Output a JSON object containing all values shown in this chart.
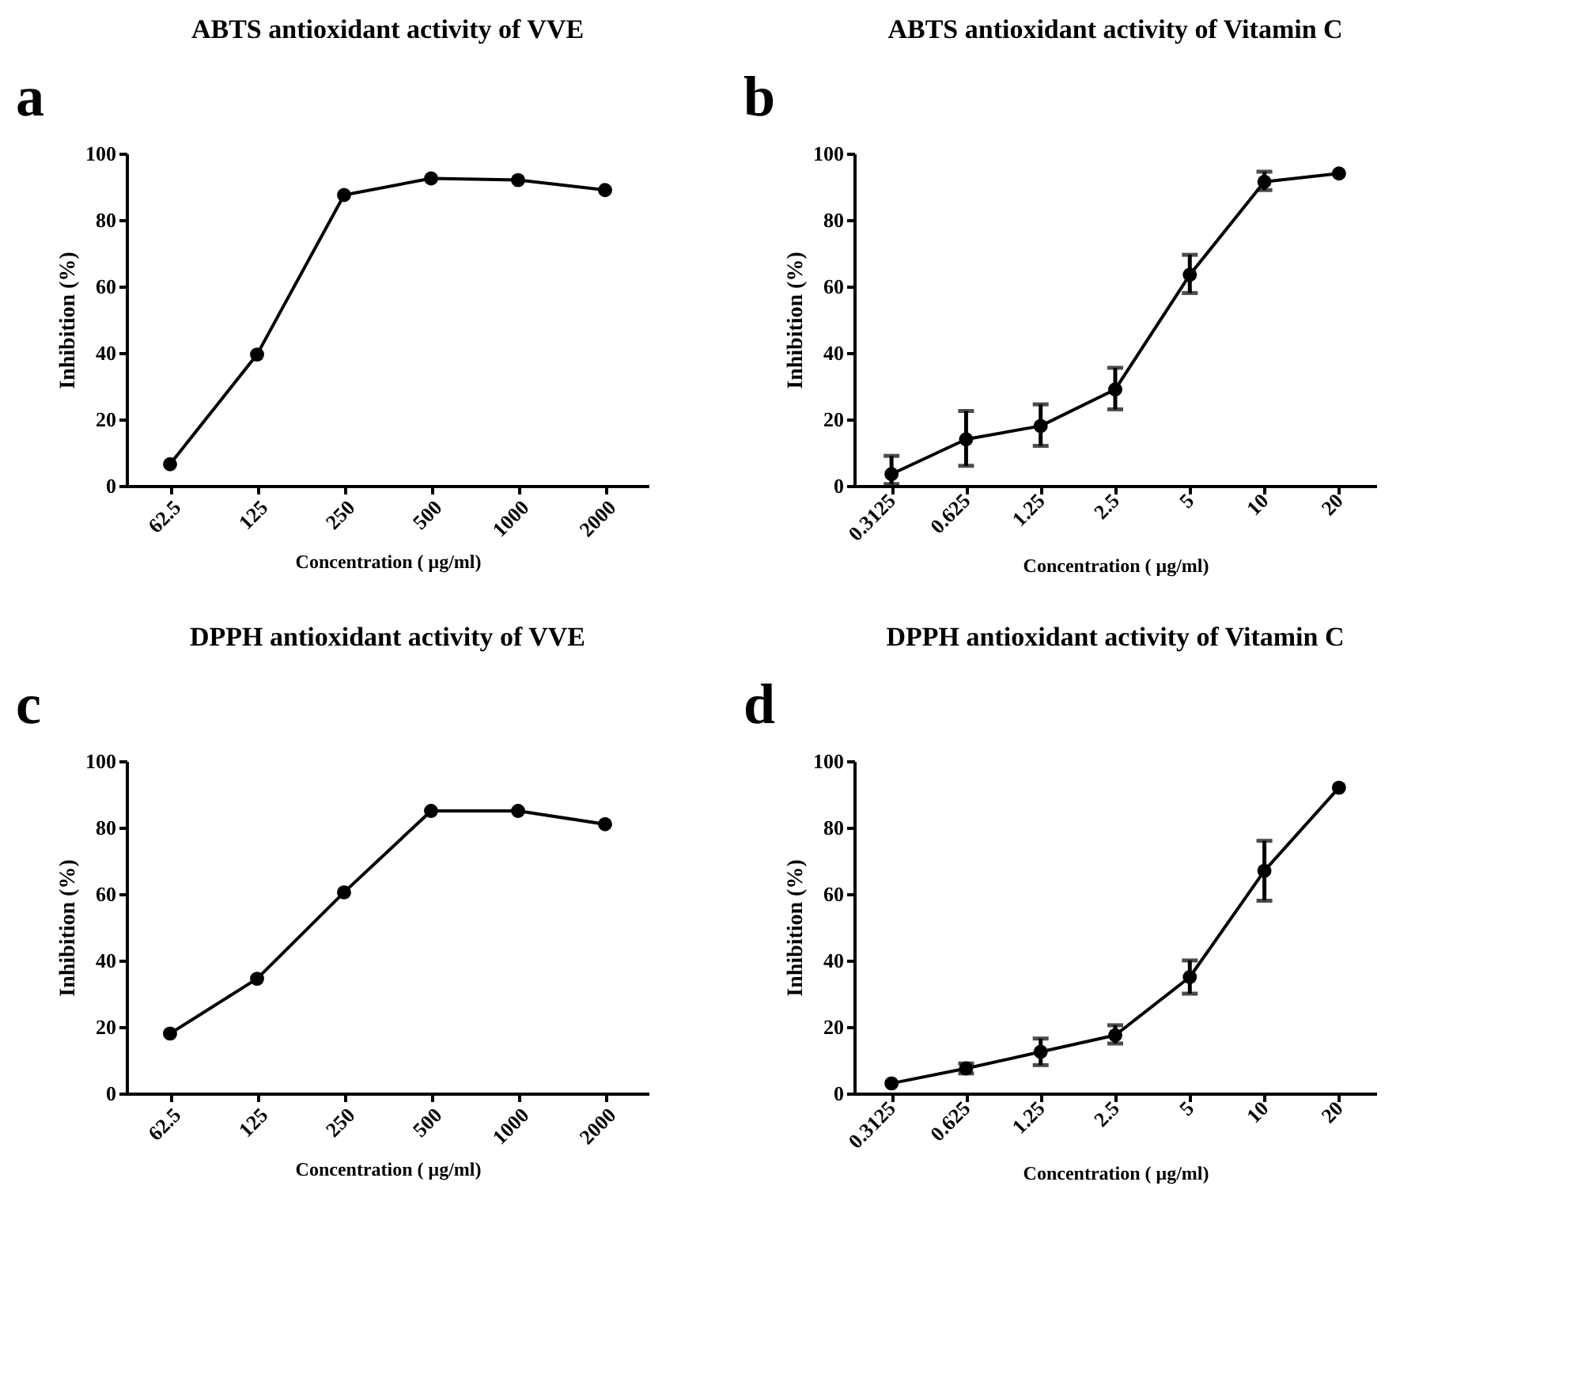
{
  "chart_data": [
    {
      "type": "line",
      "title": "ABTS antioxidant activity of VVE",
      "annotations": [
        "a"
      ],
      "xlabel": "Concentration ( μg/ml)",
      "ylabel": "Inhibition (%)",
      "categories": [
        "62.5",
        "125",
        "250",
        "500",
        "1000",
        "2000"
      ],
      "marker": "circle",
      "ylim": [
        0,
        100
      ],
      "yticks": [
        0,
        20,
        40,
        60,
        80,
        100
      ],
      "series": [
        {
          "color": "#000000",
          "values": [
            6.5,
            39.5,
            87.5,
            92.5,
            92,
            89
          ]
        }
      ]
    },
    {
      "type": "line",
      "title": "ABTS antioxidant activity of  Vitamin C",
      "annotations": [
        "b"
      ],
      "xlabel": "Concentration ( μg/ml)",
      "ylabel": "Inhibition (%)",
      "categories": [
        "0.3125",
        "0.625",
        "1.25",
        "2.5",
        "5",
        "10",
        "20"
      ],
      "marker": "circle",
      "ylim": [
        0,
        100
      ],
      "yticks": [
        0,
        20,
        40,
        60,
        80,
        100
      ],
      "series": [
        {
          "color": "#000000",
          "values": [
            3.5,
            14,
            18,
            29,
            63.5,
            91.5,
            94
          ],
          "errors": [
            [
              0.5,
              9
            ],
            [
              6,
              22.5
            ],
            [
              12,
              24.5
            ],
            [
              23,
              35.5
            ],
            [
              58,
              69.5
            ],
            [
              89,
              94.5
            ],
            null
          ]
        }
      ]
    },
    {
      "type": "line",
      "title": "DPPH antioxidant activity of VVE",
      "annotations": [
        "c"
      ],
      "xlabel": "Concentration ( μg/ml)",
      "ylabel": "Inhibition (%)",
      "categories": [
        "62.5",
        "125",
        "250",
        "500",
        "1000",
        "2000"
      ],
      "marker": "circle",
      "ylim": [
        0,
        100
      ],
      "yticks": [
        0,
        20,
        40,
        60,
        80,
        100
      ],
      "series": [
        {
          "color": "#000000",
          "values": [
            18,
            34.5,
            60.5,
            85,
            85,
            81
          ]
        }
      ]
    },
    {
      "type": "line",
      "title": "DPPH antioxidant activity of Vitamin C",
      "annotations": [
        "d"
      ],
      "xlabel": "Concentration ( μg/ml)",
      "ylabel": "Inhibition (%)",
      "categories": [
        "0.3125",
        "0.625",
        "1.25",
        "2.5",
        "5",
        "10",
        "20"
      ],
      "marker": "circle",
      "ylim": [
        0,
        100
      ],
      "yticks": [
        0,
        20,
        40,
        60,
        80,
        100
      ],
      "series": [
        {
          "color": "#000000",
          "values": [
            3,
            7.5,
            12.5,
            17.5,
            35,
            67,
            92
          ],
          "errors": [
            null,
            [
              6,
              9
            ],
            [
              8.5,
              16.5
            ],
            [
              15,
              20.5
            ],
            [
              30,
              40
            ],
            [
              58,
              76
            ],
            null
          ]
        }
      ]
    }
  ]
}
